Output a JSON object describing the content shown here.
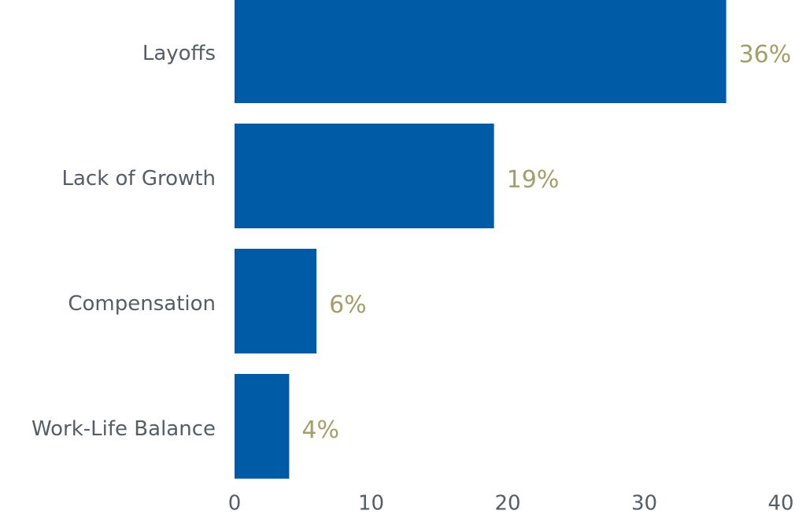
{
  "chart_data": {
    "type": "bar",
    "orientation": "horizontal",
    "categories": [
      "Layoffs",
      "Lack of Growth",
      "Compensation",
      "Work-Life Balance"
    ],
    "values": [
      36,
      19,
      6,
      4
    ],
    "value_labels": [
      "36%",
      "19%",
      "6%",
      "4%"
    ],
    "color": "#005ba6",
    "xlim": [
      0,
      40
    ],
    "xticks": [
      0,
      10,
      20,
      30,
      40
    ],
    "grid": false
  }
}
